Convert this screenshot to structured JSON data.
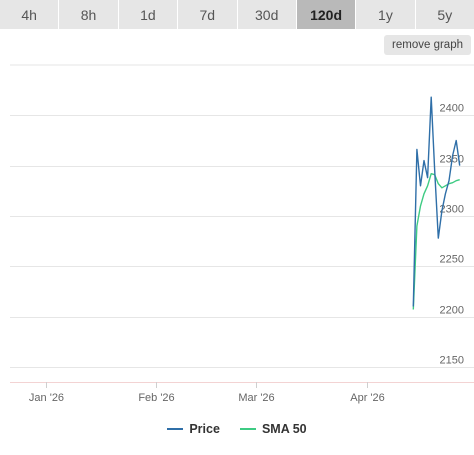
{
  "tabs": [
    {
      "label": "4h",
      "active": false
    },
    {
      "label": "8h",
      "active": false
    },
    {
      "label": "1d",
      "active": false
    },
    {
      "label": "7d",
      "active": false
    },
    {
      "label": "30d",
      "active": false
    },
    {
      "label": "120d",
      "active": true
    },
    {
      "label": "1y",
      "active": false
    },
    {
      "label": "5y",
      "active": false
    }
  ],
  "remove_graph_label": "remove graph",
  "chart_data": {
    "type": "line",
    "x_tick_labels": [
      "Jan '26",
      "Feb '26",
      "Mar '26",
      "Apr '26"
    ],
    "y_ticks": [
      2150,
      2200,
      2250,
      2300,
      2350,
      2400
    ],
    "ylim": [
      2135,
      2450
    ],
    "xlim": [
      "2025-12-22",
      "2026-05-01"
    ],
    "x_ticks": [
      "2026-01-01",
      "2026-02-01",
      "2026-03-01",
      "2026-04-01"
    ],
    "grid": true,
    "legend_position": "bottom",
    "series": [
      {
        "name": "Price",
        "color": "#2f6fa8",
        "x": [
          "2026-04-14",
          "2026-04-15",
          "2026-04-16",
          "2026-04-17",
          "2026-04-18",
          "2026-04-19",
          "2026-04-20",
          "2026-04-21",
          "2026-04-22",
          "2026-04-23",
          "2026-04-24",
          "2026-04-25",
          "2026-04-26",
          "2026-04-27"
        ],
        "values": [
          2210,
          2366,
          2330,
          2355,
          2338,
          2418,
          2345,
          2278,
          2305,
          2322,
          2335,
          2360,
          2375,
          2350
        ]
      },
      {
        "name": "SMA 50",
        "color": "#3ecb83",
        "x": [
          "2026-04-14",
          "2026-04-15",
          "2026-04-16",
          "2026-04-17",
          "2026-04-18",
          "2026-04-19",
          "2026-04-20",
          "2026-04-21",
          "2026-04-22",
          "2026-04-23",
          "2026-04-24",
          "2026-04-25",
          "2026-04-26",
          "2026-04-27"
        ],
        "values": [
          2207,
          2290,
          2310,
          2322,
          2330,
          2342,
          2341,
          2332,
          2328,
          2330,
          2332,
          2333,
          2335,
          2336
        ]
      }
    ]
  }
}
